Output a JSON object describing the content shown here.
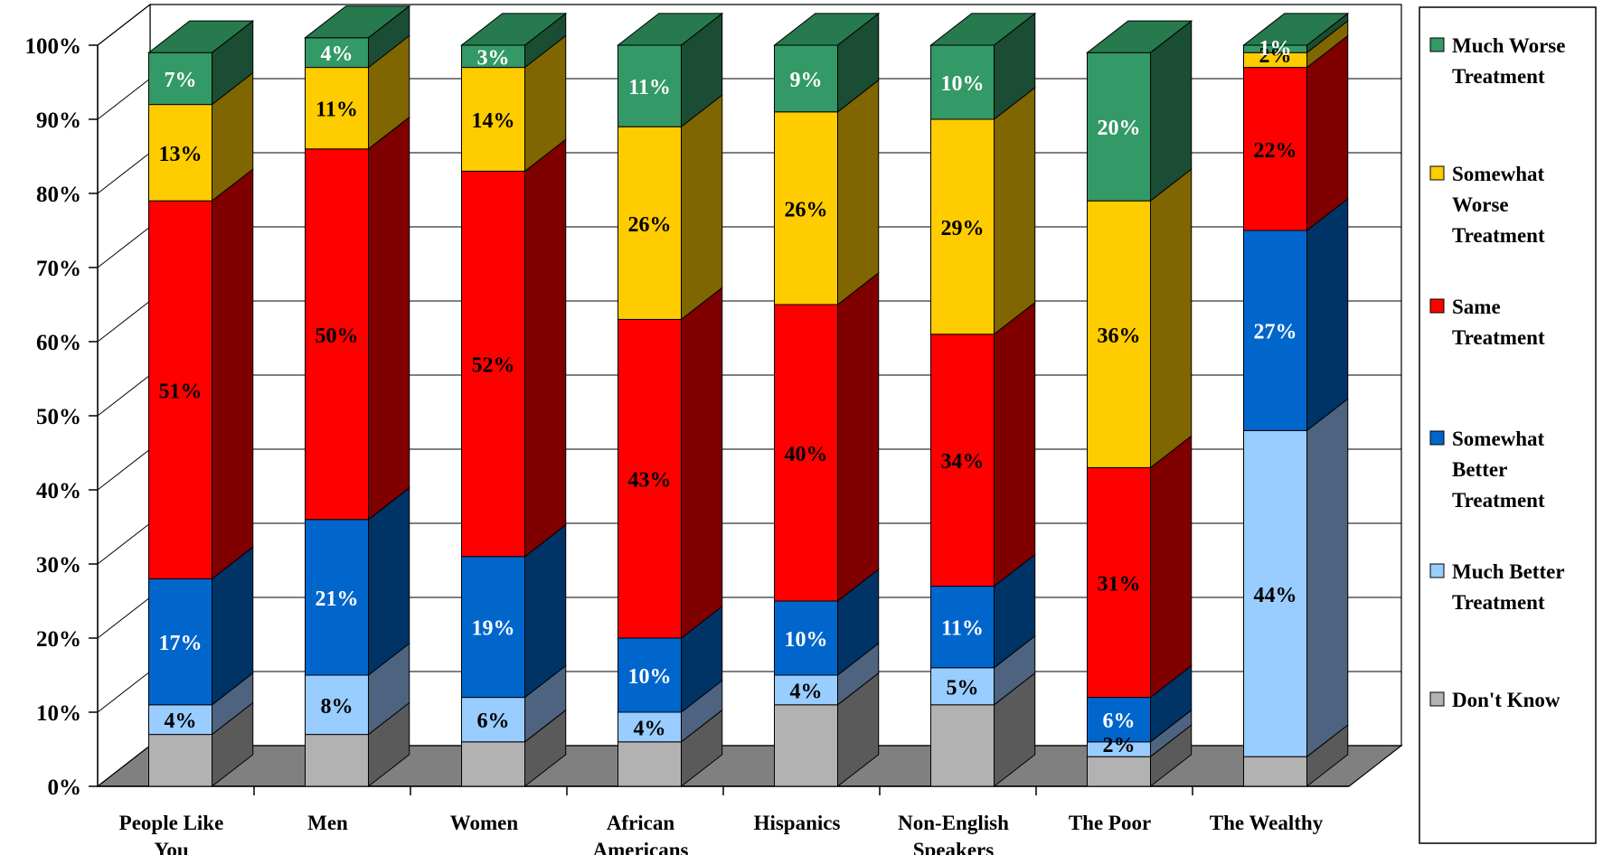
{
  "chart_data": {
    "type": "bar",
    "stacked": true,
    "three_d": true,
    "categories": [
      [
        "People Like",
        "You"
      ],
      [
        "Men"
      ],
      [
        "Women"
      ],
      [
        "African",
        "Americans"
      ],
      [
        "Hispanics"
      ],
      [
        "Non-English",
        "Speakers"
      ],
      [
        "The Poor"
      ],
      [
        "The Wealthy"
      ]
    ],
    "series": [
      {
        "name": "Don't Know",
        "legend_lines": [
          "Don't Know"
        ],
        "front": "#b2b2b2",
        "side": "#5a5a5a",
        "top": "#cccccc",
        "text": "#000000",
        "values": [
          7,
          7,
          6,
          6,
          11,
          11,
          4,
          4
        ],
        "labels": [
          "",
          "",
          "",
          "",
          "",
          "",
          "",
          ""
        ]
      },
      {
        "name": "Much Better Treatment",
        "legend_lines": [
          "Much Better",
          "Treatment"
        ],
        "front": "#99ccff",
        "side": "#4d6380",
        "top": "#c0e0ff",
        "text": "#000000",
        "values": [
          4,
          8,
          6,
          4,
          4,
          5,
          2,
          44
        ],
        "labels": [
          "4%",
          "8%",
          "6%",
          "4%",
          "4%",
          "5%",
          "2%",
          "44%"
        ]
      },
      {
        "name": "Somewhat Better Treatment",
        "legend_lines": [
          "Somewhat",
          "Better",
          "Treatment"
        ],
        "front": "#0066cc",
        "side": "#003366",
        "top": "#3385d6",
        "text": "#ffffff",
        "values": [
          17,
          21,
          19,
          10,
          10,
          11,
          6,
          27
        ],
        "labels": [
          "17%",
          "21%",
          "19%",
          "10%",
          "10%",
          "11%",
          "6%",
          "27%"
        ]
      },
      {
        "name": "Same Treatment",
        "legend_lines": [
          "Same",
          "Treatment"
        ],
        "front": "#ff0000",
        "side": "#800000",
        "top": "#ff4d4d",
        "text": "#000000",
        "values": [
          51,
          50,
          52,
          43,
          40,
          34,
          31,
          22
        ],
        "labels": [
          "51%",
          "50%",
          "52%",
          "43%",
          "40%",
          "34%",
          "31%",
          "22%"
        ]
      },
      {
        "name": "Somewhat Worse Treatment",
        "legend_lines": [
          "Somewhat",
          "Worse",
          "Treatment"
        ],
        "front": "#ffcc00",
        "side": "#806600",
        "top": "#ffd633",
        "text": "#000000",
        "values": [
          13,
          11,
          14,
          26,
          26,
          29,
          36,
          2
        ],
        "labels": [
          "13%",
          "11%",
          "14%",
          "26%",
          "26%",
          "29%",
          "36%",
          "2%"
        ]
      },
      {
        "name": "Much Worse Treatment",
        "legend_lines": [
          "Much Worse",
          "Treatment"
        ],
        "front": "#339966",
        "side": "#1a4d33",
        "top": "#267a4d",
        "text": "#ffffff",
        "values": [
          7,
          4,
          3,
          11,
          9,
          10,
          20,
          1
        ],
        "labels": [
          "7%",
          "4%",
          "3%",
          "11%",
          "9%",
          "10%",
          "20%",
          "1%"
        ]
      }
    ],
    "y_ticks": [
      "0%",
      "10%",
      "20%",
      "30%",
      "40%",
      "50%",
      "60%",
      "70%",
      "80%",
      "90%",
      "100%"
    ],
    "ylim": [
      0,
      100
    ],
    "gridlines": true,
    "legend_position": "right",
    "legend_order": [
      "Much Worse Treatment",
      "Somewhat Worse Treatment",
      "Same Treatment",
      "Somewhat Better Treatment",
      "Much Better Treatment",
      "Don't Know"
    ]
  }
}
